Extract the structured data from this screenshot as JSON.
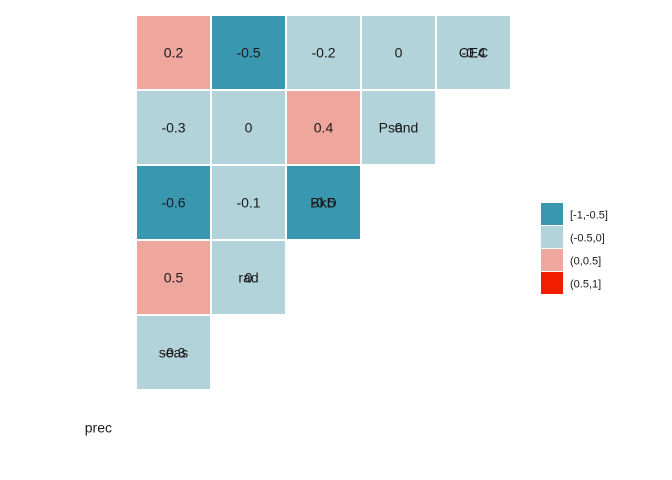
{
  "chart_data": {
    "type": "heatmap",
    "variables": [
      "prec",
      "seas",
      "rad",
      "BkD",
      "Psand",
      "CEC"
    ],
    "columns": [
      "prec",
      "seas",
      "rad",
      "BkD",
      "Psand",
      "CEC"
    ],
    "cells": [
      {
        "row": "seas",
        "col": "prec",
        "value": -0.3,
        "label": "-0.3"
      },
      {
        "row": "rad",
        "col": "prec",
        "value": 0.5,
        "label": "0.5"
      },
      {
        "row": "rad",
        "col": "seas",
        "value": 0,
        "label": "0"
      },
      {
        "row": "BkD",
        "col": "prec",
        "value": -0.6,
        "label": "-0.6"
      },
      {
        "row": "BkD",
        "col": "seas",
        "value": -0.1,
        "label": "-0.1"
      },
      {
        "row": "BkD",
        "col": "rad",
        "value": -0.5,
        "label": "-0.5"
      },
      {
        "row": "Psand",
        "col": "prec",
        "value": -0.3,
        "label": "-0.3"
      },
      {
        "row": "Psand",
        "col": "seas",
        "value": 0,
        "label": "0"
      },
      {
        "row": "Psand",
        "col": "rad",
        "value": 0.4,
        "label": "0.4"
      },
      {
        "row": "Psand",
        "col": "BkD",
        "value": 0,
        "label": "0"
      },
      {
        "row": "CEC",
        "col": "prec",
        "value": 0.2,
        "label": "0.2"
      },
      {
        "row": "CEC",
        "col": "seas",
        "value": -0.5,
        "label": "-0.5"
      },
      {
        "row": "CEC",
        "col": "rad",
        "value": -0.2,
        "label": "-0.2"
      },
      {
        "row": "CEC",
        "col": "BkD",
        "value": 0,
        "label": "0"
      },
      {
        "row": "CEC",
        "col": "Psand",
        "value": -0.4,
        "label": "-0.4"
      }
    ],
    "legend": {
      "position": "right",
      "items": [
        {
          "label": "[-1,-0.5]",
          "color": "#3a97b0"
        },
        {
          "label": "(-0.5,0]",
          "color": "#b3d3da"
        },
        {
          "label": "(0,0.5]",
          "color": "#efa69c"
        },
        {
          "label": "(0.5,1]",
          "color": "#f01d00"
        }
      ]
    },
    "grid": false
  }
}
